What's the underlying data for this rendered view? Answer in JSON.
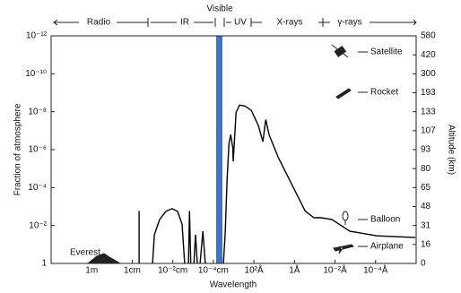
{
  "chart_data": {
    "type": "line",
    "bands": [
      "Radio",
      "IR",
      "Visible",
      "UV",
      "X-rays",
      "γ-rays"
    ],
    "x_label": "Wavelength",
    "y_label": "Fraction of atmosphere",
    "y2_label": "Altitude (km)",
    "annotations": [
      "Satellite",
      "Rocket",
      "Balloon",
      "Airplane",
      "Everest"
    ],
    "x_scale": "log",
    "y_scale": "log",
    "color": "#000000",
    "visible_color": "#4472c4",
    "xlim": [
      100,
      1e-16
    ],
    "ylim": [
      1,
      1e-12
    ],
    "xticks": [
      {
        "value": 1,
        "label": "1m"
      },
      {
        "value": 0.01,
        "label": "1cm"
      },
      {
        "value": 0.0001,
        "label": "10⁻²cm"
      },
      {
        "value": 1e-06,
        "label": "10⁻⁴cm"
      },
      {
        "value": 1e-08,
        "label": "10²Å"
      },
      {
        "value": 1e-10,
        "label": "1Å"
      },
      {
        "value": 1e-12,
        "label": "10⁻²Å"
      },
      {
        "value": 1e-14,
        "label": "10⁻⁴Å"
      }
    ],
    "yticks": [
      1,
      {
        "value": 0.01,
        "label": "10⁻²"
      },
      {
        "value": 0.0001,
        "label": "10⁻⁴"
      },
      {
        "value": 1e-06,
        "label": "10⁻⁶"
      },
      {
        "value": 1e-08,
        "label": "10⁻⁸"
      },
      {
        "value": 1e-10,
        "label": "10⁻¹⁰"
      },
      {
        "value": 1e-12,
        "label": "10⁻¹²"
      }
    ],
    "y2ticks": [
      0,
      16,
      31,
      48,
      65,
      80,
      93,
      107,
      133,
      193,
      300,
      420,
      580
    ],
    "x": [
      0.0046,
      0.0046,
      null,
      0.001,
      0.00081,
      0.00045,
      0.00022,
      0.00011,
      5.8e-05,
      3.5e-05,
      2.6e-05,
      null,
      1.7e-05,
      1.5e-05,
      1.3e-05,
      null,
      9.1e-06,
      7.6e-06,
      6.2e-06,
      null,
      4.5e-06,
      3.3e-06,
      2.5e-06,
      null,
      3.2e-07,
      2.6e-07,
      2.1e-07,
      1.7e-07,
      1.4e-07,
      1.1e-07,
      1.05e-07,
      9.3e-08,
      7.6e-08,
      5.1e-08,
      2.8e-08,
      1.35e-08,
      6e-09,
      3.6e-09,
      2.6e-09,
      1.8e-09,
      6.4e-10,
      1.4e-10,
      3e-11,
      1.1e-11,
      4.8e-12,
      1.4e-12,
      1.9e-13,
      8.7e-15,
      1.1e-16
    ],
    "values": [
      1,
      0.0017,
      null,
      1,
      0.031,
      0.0049,
      0.0018,
      0.0013,
      0.0018,
      0.0083,
      1,
      null,
      1,
      0.0017,
      1,
      null,
      1,
      0.031,
      1,
      null,
      1,
      0.02,
      1,
      null,
      1,
      0.025,
      3.7e-05,
      4.8e-07,
      1.6e-07,
      8.3e-07,
      4.2e-06,
      4.8e-07,
      1.1e-08,
      4.5e-09,
      5e-09,
      8.5e-09,
      5.5e-08,
      3.8e-07,
      2.6e-08,
      1.6e-07,
      2.5e-06,
      6.3e-05,
      0.0017,
      0.0039,
      0.0039,
      0.0049,
      0.02,
      0.035,
      0.043
    ]
  }
}
